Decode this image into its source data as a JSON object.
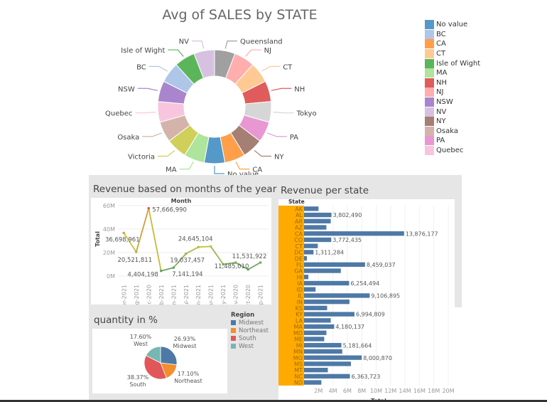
{
  "donut": {
    "title": "Avg of SALES by STATE",
    "segments": [
      {
        "label": "Queensland",
        "color": "#a0a0a0"
      },
      {
        "label": "NJ",
        "color": "#ffadad"
      },
      {
        "label": "CT",
        "color": "#ffc994"
      },
      {
        "label": "NH",
        "color": "#e05c5c"
      },
      {
        "label": "Tokyo",
        "color": "#d6d6d6"
      },
      {
        "label": "PA",
        "color": "#e997d3"
      },
      {
        "label": "NY",
        "color": "#a67f74"
      },
      {
        "label": "CA",
        "color": "#ff9f4a"
      },
      {
        "label": "No value",
        "color": "#5599c8"
      },
      {
        "label": "MA",
        "color": "#aee49c"
      },
      {
        "label": "Victoria",
        "color": "#cfcf5a"
      },
      {
        "label": "Osaka",
        "color": "#d4b3ab"
      },
      {
        "label": "Quebec",
        "color": "#f7c6de"
      },
      {
        "label": "NSW",
        "color": "#a985ce"
      },
      {
        "label": "BC",
        "color": "#aec7e8"
      },
      {
        "label": "Isle of Wight",
        "color": "#5bb55b"
      },
      {
        "label": "NV",
        "color": "#d6c2e0"
      }
    ],
    "legend": [
      {
        "label": "No value",
        "color": "#5599c8"
      },
      {
        "label": "BC",
        "color": "#aec7e8"
      },
      {
        "label": "CA",
        "color": "#ff9f4a"
      },
      {
        "label": "CT",
        "color": "#ffc994"
      },
      {
        "label": "Isle of Wight",
        "color": "#5bb55b"
      },
      {
        "label": "MA",
        "color": "#aee49c"
      },
      {
        "label": "NH",
        "color": "#e05c5c"
      },
      {
        "label": "NJ",
        "color": "#ffadad"
      },
      {
        "label": "NSW",
        "color": "#a985ce"
      },
      {
        "label": "NV",
        "color": "#d6c2e0"
      },
      {
        "label": "NY",
        "color": "#a67f74"
      },
      {
        "label": "Osaka",
        "color": "#d4b3ab"
      },
      {
        "label": "PA",
        "color": "#e997d3"
      },
      {
        "label": "Quebec",
        "color": "#f7c6de"
      }
    ]
  },
  "line": {
    "title": "Revenue based on months of the year",
    "header": "Month",
    "ylabel": "Total",
    "yticks": [
      "0M",
      "20M",
      "40M",
      "60M"
    ],
    "ytick_values": [
      0,
      20000000,
      40000000,
      60000000
    ],
    "points": [
      {
        "x": "Apr-2021",
        "y": 36698961,
        "label": "36,698,961"
      },
      {
        "x": "Aug-2021",
        "y": 20521811,
        "label": "20,521,811"
      },
      {
        "x": "Dec-2020",
        "y": 57666990,
        "label": "57,666,990"
      },
      {
        "x": "Feb-2021",
        "y": 4404198,
        "label": "4,404,198"
      },
      {
        "x": "Jan-2021",
        "y": 7141194,
        "label": "7,141,194"
      },
      {
        "x": "Jul-2021",
        "y": 19037457,
        "label": "19,037,457"
      },
      {
        "x": "Jun-2021",
        "y": 24645104,
        "label": "24,645,104"
      },
      {
        "x": "Mar-2021",
        "y": 25200000,
        "label": ""
      },
      {
        "x": "May-2021",
        "y": 10000000,
        "label": ""
      },
      {
        "x": "Nov-2020",
        "y": 11485010,
        "label": "11,485,010"
      },
      {
        "x": "Oct-2020",
        "y": 5600000,
        "label": ""
      },
      {
        "x": "Sep-2021",
        "y": 11531922,
        "label": "11,531,922"
      }
    ]
  },
  "bars": {
    "title": "Revenue per state",
    "header": "State",
    "xlabel": "Total",
    "xticks": [
      "2M",
      "4M",
      "6M",
      "8M",
      "10M",
      "12M",
      "14M",
      "16M",
      "18M",
      "20M"
    ],
    "bar_color": "#4e79a7",
    "row_color": "#ffaa00",
    "rows": [
      {
        "state": "AK",
        "value": 2000000,
        "label": ""
      },
      {
        "state": "AL",
        "value": 3802490,
        "label": "3,802,490"
      },
      {
        "state": "AR",
        "value": 3700000,
        "label": ""
      },
      {
        "state": "AZ",
        "value": 3100000,
        "label": ""
      },
      {
        "state": "CA",
        "value": 13876177,
        "label": "13,876,177"
      },
      {
        "state": "CO",
        "value": 3772435,
        "label": "3,772,435"
      },
      {
        "state": "CT",
        "value": 1900000,
        "label": ""
      },
      {
        "state": "DC",
        "value": 1311284,
        "label": "1,311,284"
      },
      {
        "state": "DE",
        "value": 400000,
        "label": ""
      },
      {
        "state": "FL",
        "value": 8459037,
        "label": "8,459,037"
      },
      {
        "state": "GA",
        "value": 5100000,
        "label": ""
      },
      {
        "state": "HI",
        "value": 600000,
        "label": ""
      },
      {
        "state": "IA",
        "value": 6254494,
        "label": "6,254,494"
      },
      {
        "state": "ID",
        "value": 1600000,
        "label": ""
      },
      {
        "state": "IL",
        "value": 9106895,
        "label": "9,106,895"
      },
      {
        "state": "IN",
        "value": 6300000,
        "label": ""
      },
      {
        "state": "KS",
        "value": 3200000,
        "label": ""
      },
      {
        "state": "KY",
        "value": 6994809,
        "label": "6,994,809"
      },
      {
        "state": "LA",
        "value": 3700000,
        "label": ""
      },
      {
        "state": "MA",
        "value": 4180137,
        "label": "4,180,137"
      },
      {
        "state": "MD",
        "value": 3100000,
        "label": ""
      },
      {
        "state": "ME",
        "value": 2800000,
        "label": ""
      },
      {
        "state": "MI",
        "value": 5181664,
        "label": "5,181,664"
      },
      {
        "state": "MN",
        "value": 5300000,
        "label": ""
      },
      {
        "state": "MO",
        "value": 8000870,
        "label": "8,000,870"
      },
      {
        "state": "MS",
        "value": 6500000,
        "label": ""
      },
      {
        "state": "MT",
        "value": 3300000,
        "label": ""
      },
      {
        "state": "NC",
        "value": 6363723,
        "label": "6,363,723"
      },
      {
        "state": "ND",
        "value": 2400000,
        "label": ""
      }
    ]
  },
  "pie": {
    "title": "quantity in %",
    "legend_title": "Region",
    "slices": [
      {
        "name": "Midwest",
        "pct": 26.93,
        "label": "26.93%",
        "color": "#4e79a7"
      },
      {
        "name": "Northeast",
        "pct": 17.1,
        "label": "17.10%",
        "color": "#f28e2b"
      },
      {
        "name": "South",
        "pct": 38.37,
        "label": "38.37%",
        "color": "#e15759"
      },
      {
        "name": "West",
        "pct": 17.6,
        "label": "17.60%",
        "color": "#76b7b2"
      }
    ]
  }
}
